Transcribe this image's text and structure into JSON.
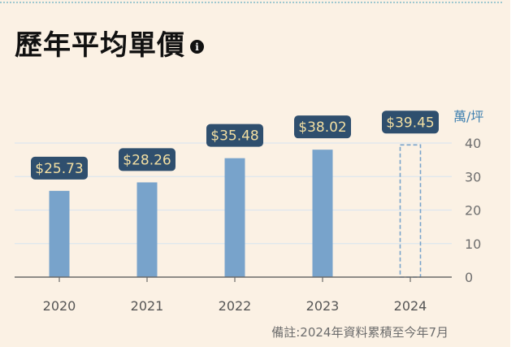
{
  "page": {
    "title": "歷年平均單價",
    "footnote": "備註:2024年資料累積至今年7月"
  },
  "chart_data": {
    "type": "bar",
    "categories": [
      "2020",
      "2021",
      "2022",
      "2023",
      "2024"
    ],
    "values": [
      25.73,
      28.26,
      35.48,
      38.02,
      39.45
    ],
    "value_labels": [
      "$25.73",
      "$28.26",
      "$35.48",
      "$38.02",
      "$39.45"
    ],
    "estimated": [
      false,
      false,
      false,
      false,
      true
    ],
    "unit_label": "萬/坪",
    "yticks": [
      0,
      10,
      20,
      30,
      40
    ],
    "ylim": [
      0,
      40
    ],
    "grid": true,
    "colors": {
      "bar": "#78a3cb",
      "label_bg": "#2f4f6e",
      "label_text": "#f3dfa2",
      "dashed": "#78a3cb"
    }
  }
}
